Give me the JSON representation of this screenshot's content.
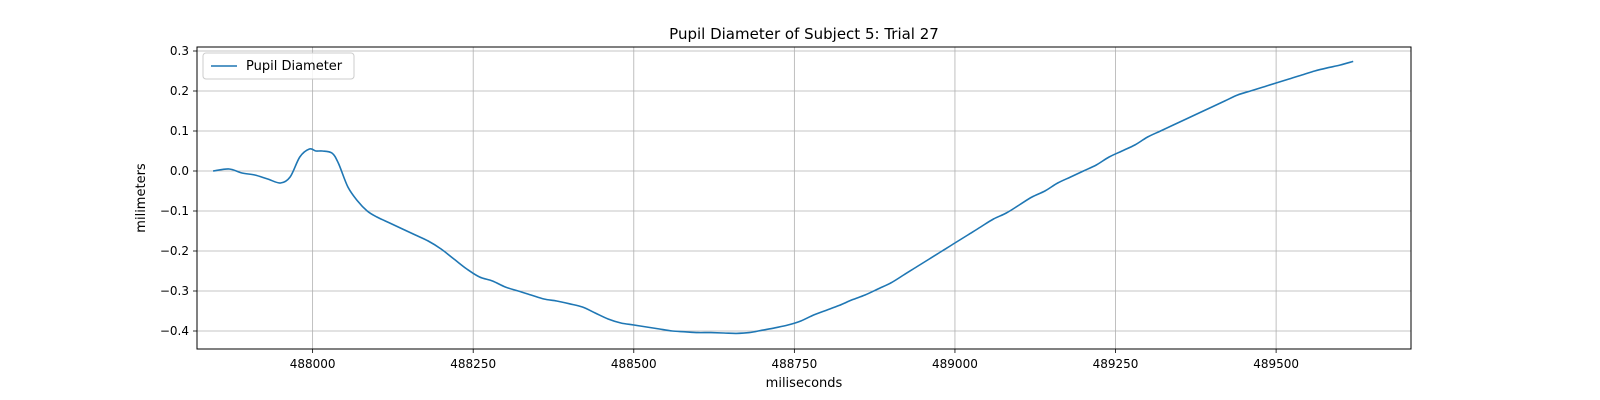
{
  "chart_data": {
    "type": "line",
    "title": "Pupil Diameter of Subject 5: Trial 27",
    "xlabel": "miliseconds",
    "ylabel": "milimeters",
    "xlim": [
      487820,
      489710
    ],
    "ylim": [
      -0.445,
      0.31
    ],
    "xticks": [
      488000,
      488250,
      488500,
      488750,
      489000,
      489250,
      489500
    ],
    "xtick_labels": [
      "488000",
      "488250",
      "488500",
      "488750",
      "489000",
      "489250",
      "489500"
    ],
    "yticks": [
      -0.4,
      -0.3,
      -0.2,
      -0.1,
      0.0,
      0.1,
      0.2,
      0.3
    ],
    "ytick_labels": [
      "−0.4",
      "−0.3",
      "−0.2",
      "−0.1",
      "0.0",
      "0.1",
      "0.2",
      "0.3"
    ],
    "grid": true,
    "legend_position": "top-left",
    "color": "#1f77b4",
    "series": [
      {
        "name": "Pupil Diameter",
        "x": [
          487845,
          487870,
          487890,
          487910,
          487930,
          487950,
          487965,
          487980,
          487995,
          488005,
          488015,
          488030,
          488040,
          488055,
          488070,
          488085,
          488100,
          488120,
          488140,
          488160,
          488180,
          488200,
          488220,
          488240,
          488260,
          488280,
          488300,
          488320,
          488340,
          488360,
          488380,
          488400,
          488420,
          488440,
          488460,
          488480,
          488500,
          488520,
          488540,
          488560,
          488580,
          488600,
          488620,
          488640,
          488660,
          488680,
          488700,
          488720,
          488740,
          488760,
          488780,
          488800,
          488820,
          488840,
          488860,
          488880,
          488900,
          488920,
          488940,
          488960,
          488980,
          489000,
          489020,
          489040,
          489060,
          489080,
          489100,
          489120,
          489140,
          489160,
          489180,
          489200,
          489220,
          489240,
          489260,
          489280,
          489300,
          489320,
          489340,
          489360,
          489380,
          489400,
          489420,
          489440,
          489460,
          489480,
          489500,
          489520,
          489540,
          489560,
          489580,
          489600,
          489620
        ],
        "y": [
          0.0,
          0.005,
          -0.005,
          -0.01,
          -0.02,
          -0.03,
          -0.015,
          0.035,
          0.055,
          0.05,
          0.05,
          0.045,
          0.02,
          -0.04,
          -0.075,
          -0.1,
          -0.115,
          -0.13,
          -0.145,
          -0.16,
          -0.175,
          -0.195,
          -0.22,
          -0.245,
          -0.265,
          -0.275,
          -0.29,
          -0.3,
          -0.31,
          -0.32,
          -0.325,
          -0.332,
          -0.34,
          -0.355,
          -0.37,
          -0.38,
          -0.385,
          -0.39,
          -0.395,
          -0.4,
          -0.402,
          -0.404,
          -0.404,
          -0.405,
          -0.406,
          -0.404,
          -0.398,
          -0.392,
          -0.385,
          -0.375,
          -0.36,
          -0.348,
          -0.336,
          -0.322,
          -0.31,
          -0.295,
          -0.28,
          -0.26,
          -0.24,
          -0.22,
          -0.2,
          -0.18,
          -0.16,
          -0.14,
          -0.12,
          -0.105,
          -0.085,
          -0.065,
          -0.05,
          -0.03,
          -0.015,
          0.0,
          0.015,
          0.035,
          0.05,
          0.065,
          0.085,
          0.1,
          0.115,
          0.13,
          0.145,
          0.16,
          0.175,
          0.19,
          0.2,
          0.21,
          0.22,
          0.23,
          0.24,
          0.25,
          0.258,
          0.265,
          0.274
        ]
      }
    ]
  }
}
